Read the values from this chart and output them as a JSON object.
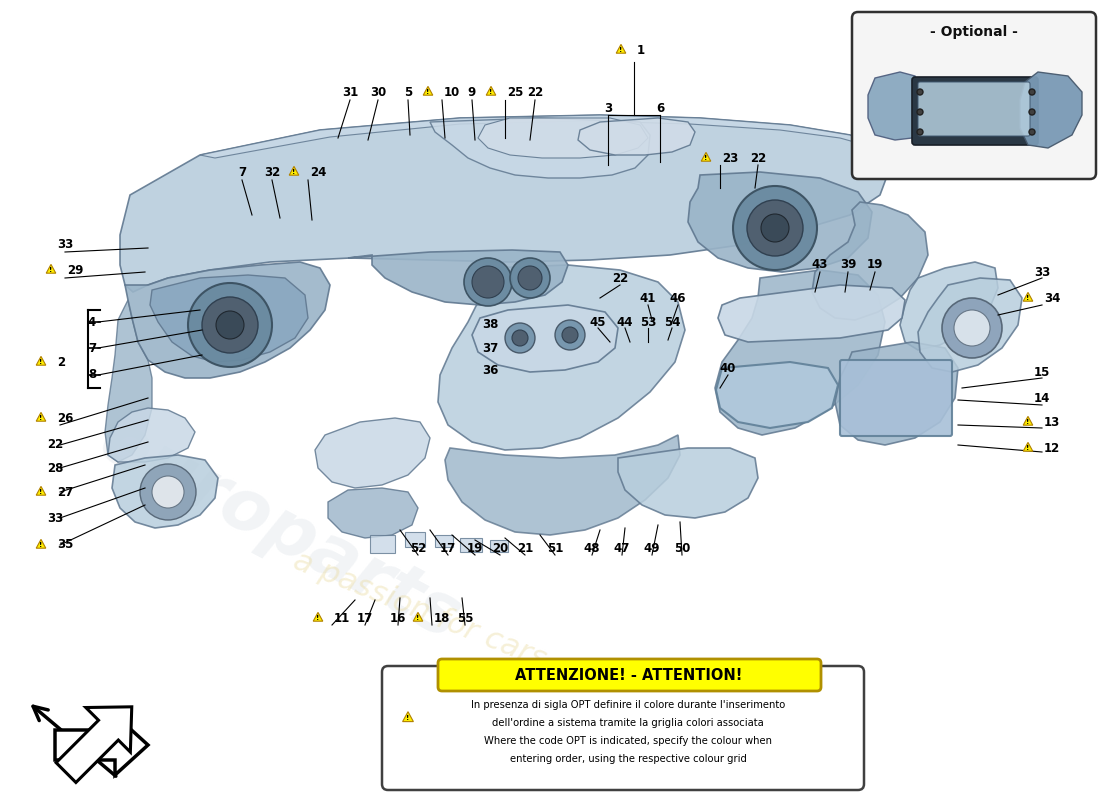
{
  "bg_color": "#ffffff",
  "fig_width": 11.0,
  "fig_height": 8.0,
  "attention_title": "ATTENZIONE! - ATTENTION!",
  "attention_line1": "In presenza di sigla OPT definire il colore durante l'inserimento",
  "attention_line2": "dell'ordine a sistema tramite la griglia colori associata",
  "attention_line3": "Where the code OPT is indicated, specify the colour when",
  "attention_line4": "entering order, using the respective colour grid",
  "optional_label": "- Optional -",
  "attention_box_color": "#ffff00",
  "c1": "#b8cedd",
  "c2": "#9ab4c8",
  "c3": "#c8d8e6",
  "c4": "#a0b8cc",
  "c5": "#d0dce8",
  "c6": "#e8eeF4",
  "cedge": "#607890",
  "cdark": "#506070"
}
